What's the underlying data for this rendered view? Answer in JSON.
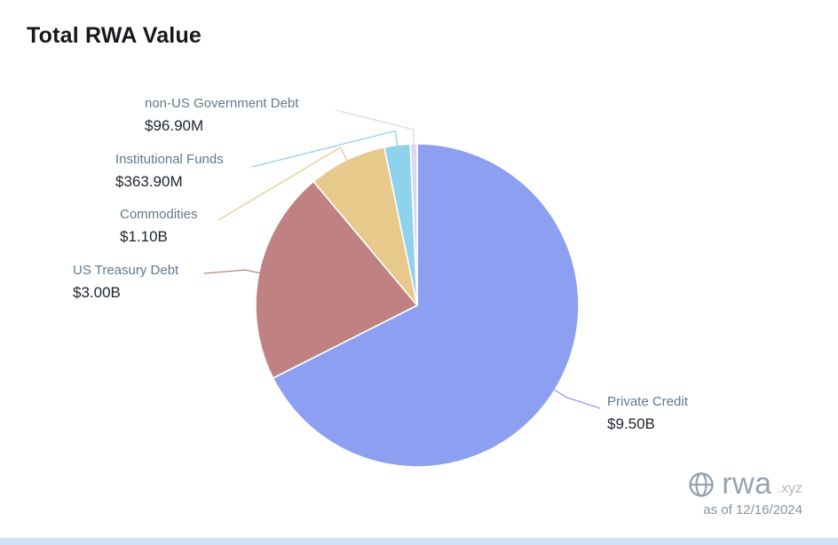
{
  "title": "Total RWA Value",
  "chart_data": {
    "type": "pie",
    "title": "Total RWA Value",
    "direction": "clockwise",
    "start_angle_deg": 0,
    "legend_position": "outside-leader-lines",
    "total_value_billions": 14.0608,
    "slices": [
      {
        "label": "Private Credit",
        "value_text": "$9.50B",
        "value_billions": 9.5,
        "color": "#8d9ff0"
      },
      {
        "label": "US Treasury Debt",
        "value_text": "$3.00B",
        "value_billions": 3.0,
        "color": "#c08182"
      },
      {
        "label": "Commodities",
        "value_text": "$1.10B",
        "value_billions": 1.1,
        "color": "#e7c98c"
      },
      {
        "label": "Institutional Funds",
        "value_text": "$363.90M",
        "value_billions": 0.3639,
        "color": "#8ed2ec"
      },
      {
        "label": "non-US Government Debt",
        "value_text": "$96.90M",
        "value_billions": 0.0969,
        "color": "#d9dbec"
      }
    ]
  },
  "footer": {
    "brand": "rwa",
    "brand_suffix": ".xyz",
    "as_of": "as of 12/16/2024"
  }
}
